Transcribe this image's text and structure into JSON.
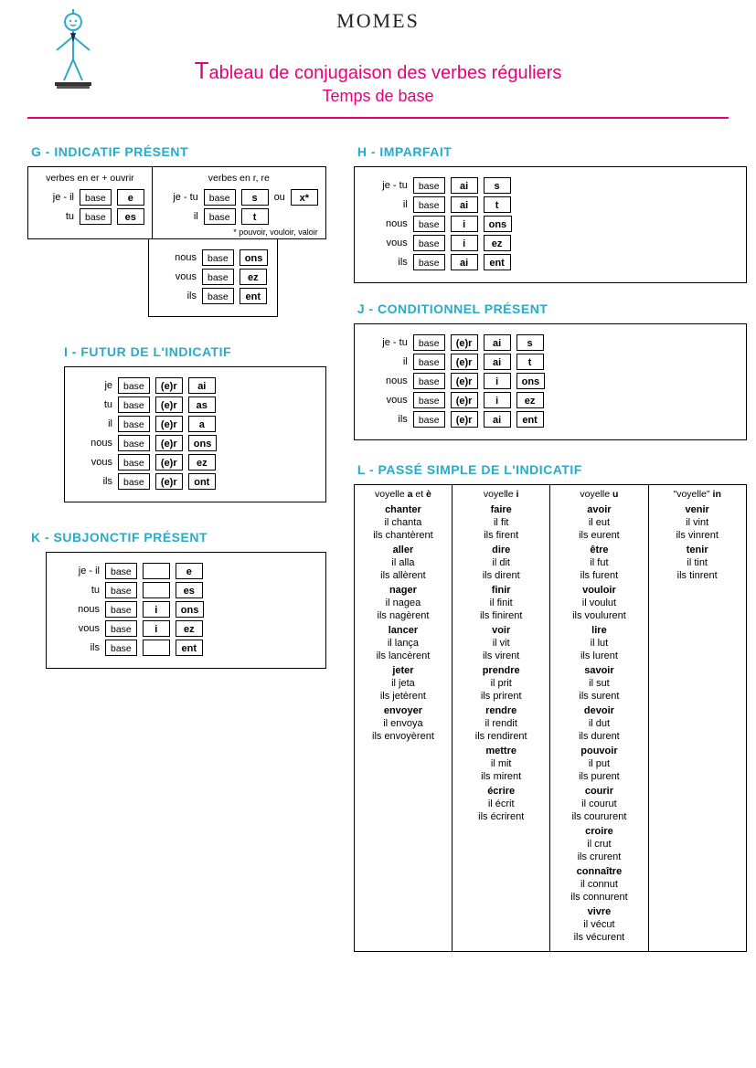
{
  "brand": "MOMES",
  "title_cap": "T",
  "title_rest": "ableau de conjugaison des verbes réguliers",
  "subtitle": "Temps de base",
  "colors": {
    "accent": "#e6007e",
    "heading": "#2aa9c9"
  },
  "G": {
    "title": "G - INDICATIF PRÉSENT",
    "left_head": "verbes en er + ouvrir",
    "right_head": "verbes en r, re",
    "left_rows": [
      {
        "p": "je - il",
        "b": "base",
        "e": "e"
      },
      {
        "p": "tu",
        "b": "base",
        "e": "es"
      }
    ],
    "right_rows": [
      {
        "p": "je - tu",
        "b": "base",
        "e1": "s",
        "ou": "ou",
        "e2": "x*"
      },
      {
        "p": "il",
        "b": "base",
        "e1": "t"
      }
    ],
    "footnote": "* pouvoir, vouloir, valoir",
    "below_rows": [
      {
        "p": "nous",
        "b": "base",
        "e": "ons"
      },
      {
        "p": "vous",
        "b": "base",
        "e": "ez"
      },
      {
        "p": "ils",
        "b": "base",
        "e": "ent"
      }
    ]
  },
  "H": {
    "title": "H - IMPARFAIT",
    "rows": [
      {
        "p": "je - tu",
        "b": "base",
        "m": "ai",
        "e": "s"
      },
      {
        "p": "il",
        "b": "base",
        "m": "ai",
        "e": "t"
      },
      {
        "p": "nous",
        "b": "base",
        "m": "i",
        "e": "ons"
      },
      {
        "p": "vous",
        "b": "base",
        "m": "i",
        "e": "ez"
      },
      {
        "p": "ils",
        "b": "base",
        "m": "ai",
        "e": "ent"
      }
    ]
  },
  "I": {
    "title": "I - FUTUR DE L'INDICATIF",
    "rows": [
      {
        "p": "je",
        "b": "base",
        "m": "(e)r",
        "e": "ai"
      },
      {
        "p": "tu",
        "b": "base",
        "m": "(e)r",
        "e": "as"
      },
      {
        "p": "il",
        "b": "base",
        "m": "(e)r",
        "e": "a"
      },
      {
        "p": "nous",
        "b": "base",
        "m": "(e)r",
        "e": "ons"
      },
      {
        "p": "vous",
        "b": "base",
        "m": "(e)r",
        "e": "ez"
      },
      {
        "p": "ils",
        "b": "base",
        "m": "(e)r",
        "e": "ont"
      }
    ]
  },
  "J": {
    "title": "J - CONDITIONNEL PRÉSENT",
    "rows": [
      {
        "p": "je - tu",
        "b": "base",
        "m": "(e)r",
        "n": "ai",
        "e": "s"
      },
      {
        "p": "il",
        "b": "base",
        "m": "(e)r",
        "n": "ai",
        "e": "t"
      },
      {
        "p": "nous",
        "b": "base",
        "m": "(e)r",
        "n": "i",
        "e": "ons"
      },
      {
        "p": "vous",
        "b": "base",
        "m": "(e)r",
        "n": "i",
        "e": "ez"
      },
      {
        "p": "ils",
        "b": "base",
        "m": "(e)r",
        "n": "ai",
        "e": "ent"
      }
    ]
  },
  "K": {
    "title": "K - SUBJONCTIF PRÉSENT",
    "rows": [
      {
        "p": "je - il",
        "b": "base",
        "m": "",
        "e": "e"
      },
      {
        "p": "tu",
        "b": "base",
        "m": "",
        "e": "es"
      },
      {
        "p": "nous",
        "b": "base",
        "m": "i",
        "e": "ons"
      },
      {
        "p": "vous",
        "b": "base",
        "m": "i",
        "e": "ez"
      },
      {
        "p": "ils",
        "b": "base",
        "m": "",
        "e": "ent"
      }
    ]
  },
  "L": {
    "title": "L - PASSÉ SIMPLE DE L'INDICATIF",
    "columns": [
      {
        "head_pre": "voyelle ",
        "head_b": "a",
        "head_post": " et ",
        "head_b2": "è",
        "verbs": [
          {
            "inf": "chanter",
            "f": [
              "il chanta",
              "ils chantèrent"
            ]
          },
          {
            "inf": "aller",
            "f": [
              "il alla",
              "ils allèrent"
            ]
          },
          {
            "inf": "nager",
            "f": [
              "il nagea",
              "ils nagèrent"
            ]
          },
          {
            "inf": "lancer",
            "f": [
              "il lança",
              "ils lancèrent"
            ]
          },
          {
            "inf": "jeter",
            "f": [
              "il jeta",
              "ils jetèrent"
            ]
          },
          {
            "inf": "envoyer",
            "f": [
              "il envoya",
              "ils envoyèrent"
            ]
          }
        ]
      },
      {
        "head_pre": "voyelle ",
        "head_b": "i",
        "head_post": "",
        "head_b2": "",
        "verbs": [
          {
            "inf": "faire",
            "f": [
              "il fit",
              "ils firent"
            ]
          },
          {
            "inf": "dire",
            "f": [
              "il dit",
              "ils dirent"
            ]
          },
          {
            "inf": "finir",
            "f": [
              "il finit",
              "ils finirent"
            ]
          },
          {
            "inf": "voir",
            "f": [
              "il vit",
              "ils virent"
            ]
          },
          {
            "inf": "prendre",
            "f": [
              "il prit",
              "ils prirent"
            ]
          },
          {
            "inf": "rendre",
            "f": [
              "il rendit",
              "ils rendirent"
            ]
          },
          {
            "inf": "mettre",
            "f": [
              "il mit",
              "ils mirent"
            ]
          },
          {
            "inf": "écrire",
            "f": [
              "il écrit",
              "ils écrirent"
            ]
          }
        ]
      },
      {
        "head_pre": "voyelle ",
        "head_b": "u",
        "head_post": "",
        "head_b2": "",
        "verbs": [
          {
            "inf": "avoir",
            "f": [
              "il eut",
              "ils eurent"
            ]
          },
          {
            "inf": "être",
            "f": [
              "il fut",
              "ils furent"
            ]
          },
          {
            "inf": "vouloir",
            "f": [
              "il voulut",
              "ils voulurent"
            ]
          },
          {
            "inf": "lire",
            "f": [
              "il lut",
              "ils lurent"
            ]
          },
          {
            "inf": "savoir",
            "f": [
              "il sut",
              "ils surent"
            ]
          },
          {
            "inf": "devoir",
            "f": [
              "il dut",
              "ils durent"
            ]
          },
          {
            "inf": "pouvoir",
            "f": [
              "il put",
              "ils purent"
            ]
          },
          {
            "inf": "courir",
            "f": [
              "il courut",
              "ils coururent"
            ]
          },
          {
            "inf": "croire",
            "f": [
              "il crut",
              "ils crurent"
            ]
          },
          {
            "inf": "connaître",
            "f": [
              "il connut",
              "ils connurent"
            ]
          },
          {
            "inf": "vivre",
            "f": [
              "il vécut",
              "ils vécurent"
            ]
          }
        ]
      },
      {
        "head_pre": "\"voyelle\" ",
        "head_b": "in",
        "head_post": "",
        "head_b2": "",
        "verbs": [
          {
            "inf": "venir",
            "f": [
              "il vint",
              "ils vinrent"
            ]
          },
          {
            "inf": "tenir",
            "f": [
              "il tint",
              "ils tinrent"
            ]
          }
        ]
      }
    ]
  }
}
